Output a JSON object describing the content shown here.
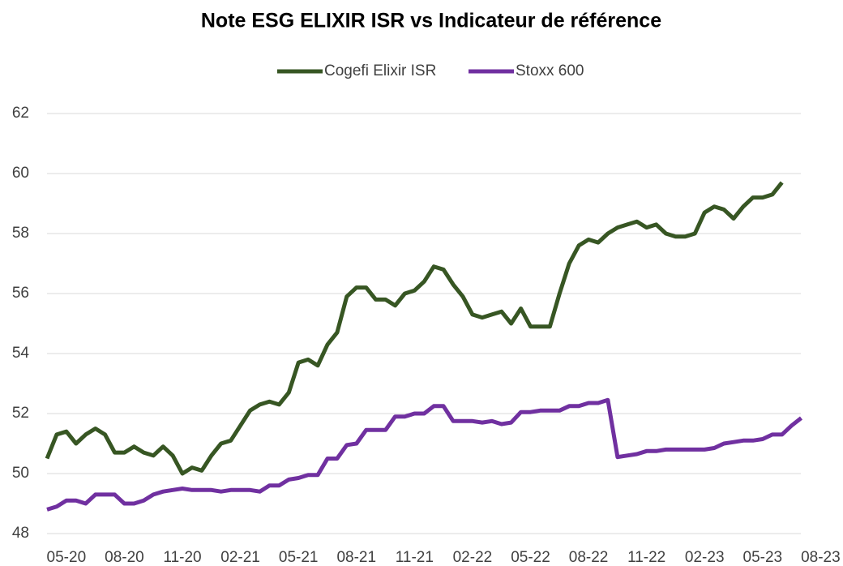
{
  "chart_data": {
    "type": "line",
    "title": "Note ESG ELIXIR ISR vs Indicateur de référence",
    "categories": [
      null,
      null,
      "05-20",
      null,
      null,
      null,
      null,
      null,
      "08-20",
      null,
      null,
      null,
      null,
      null,
      "11-20",
      null,
      null,
      null,
      null,
      null,
      "02-21",
      null,
      null,
      null,
      null,
      null,
      "05-21",
      null,
      null,
      null,
      null,
      null,
      "08-21",
      null,
      null,
      null,
      null,
      null,
      "11-21",
      null,
      null,
      null,
      null,
      null,
      "02-22",
      null,
      null,
      null,
      null,
      null,
      "05-22",
      null,
      null,
      null,
      null,
      null,
      "08-22",
      null,
      null,
      null,
      null,
      null,
      "11-22",
      null,
      null,
      null,
      null,
      null,
      "02-23",
      null,
      null,
      null,
      null,
      null,
      "05-23",
      null,
      null,
      null,
      null,
      null,
      "08-23"
    ],
    "series": [
      {
        "name": "Cogefi Elixir ISR",
        "color": "#375623",
        "values": [
          50.5,
          51.3,
          51.4,
          51.0,
          51.3,
          51.5,
          51.3,
          50.7,
          50.7,
          50.9,
          50.7,
          50.6,
          50.9,
          50.6,
          50.0,
          50.2,
          50.1,
          50.6,
          51.0,
          51.1,
          51.6,
          52.1,
          52.3,
          52.4,
          52.3,
          52.7,
          53.7,
          53.8,
          53.6,
          54.3,
          54.7,
          55.9,
          56.2,
          56.2,
          55.8,
          55.8,
          55.6,
          56.0,
          56.1,
          56.4,
          56.9,
          56.8,
          56.3,
          55.9,
          55.3,
          55.2,
          55.3,
          55.4,
          55.0,
          55.5,
          54.9,
          54.9,
          54.9,
          56.0,
          57.0,
          57.6,
          57.8,
          57.7,
          58.0,
          58.2,
          58.3,
          58.4,
          58.2,
          58.3,
          58.0,
          57.9,
          57.9,
          58.0,
          58.7,
          58.9,
          58.8,
          58.5,
          58.9,
          59.2,
          59.2,
          59.3,
          59.7,
          null,
          null,
          null,
          null
        ]
      },
      {
        "name": "Stoxx 600",
        "color": "#7030a0",
        "values": [
          48.8,
          48.9,
          49.1,
          49.1,
          49.0,
          49.3,
          49.3,
          49.3,
          49.0,
          49.0,
          49.1,
          49.3,
          49.4,
          49.45,
          49.5,
          49.45,
          49.45,
          49.45,
          49.4,
          49.45,
          49.45,
          49.45,
          49.4,
          49.6,
          49.6,
          49.8,
          49.85,
          49.95,
          49.95,
          50.5,
          50.5,
          50.95,
          51.0,
          51.45,
          51.45,
          51.45,
          51.9,
          51.9,
          52.0,
          52.0,
          52.25,
          52.25,
          51.75,
          51.75,
          51.75,
          51.7,
          51.75,
          51.65,
          51.7,
          52.05,
          52.05,
          52.1,
          52.1,
          52.1,
          52.25,
          52.25,
          52.35,
          52.35,
          52.45,
          50.55,
          50.6,
          50.65,
          50.75,
          50.75,
          50.8,
          50.8,
          50.8,
          50.8,
          50.8,
          50.85,
          51.0,
          51.05,
          51.1,
          51.1,
          51.15,
          51.3,
          51.3,
          51.6,
          51.85,
          null,
          null
        ]
      }
    ],
    "ylim": [
      48,
      62
    ],
    "yticks": [
      48,
      50,
      52,
      54,
      56,
      58,
      60,
      62
    ],
    "grid": true,
    "legend": "top"
  }
}
